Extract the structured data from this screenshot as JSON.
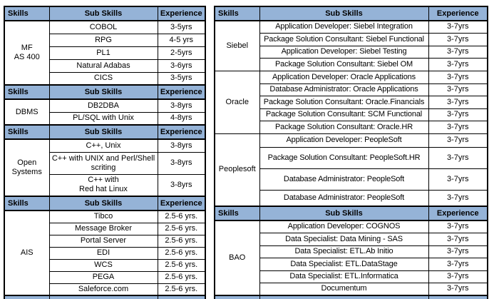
{
  "colors": {
    "header_bg": "#95B3D7",
    "border": "#000000",
    "background": "#FFFFFF"
  },
  "tables": [
    {
      "id": "left",
      "blocks": [
        {
          "type": "header",
          "skills": "Skills",
          "sub_skills": "Sub Skills",
          "experience": "Experience"
        },
        {
          "type": "section",
          "skill": "MF\nAS 400",
          "rows": [
            {
              "sub": "COBOL",
              "exp": "3-5yrs"
            },
            {
              "sub": "RPG",
              "exp": "4-5 yrs"
            },
            {
              "sub": "PL1",
              "exp": "2-5yrs"
            },
            {
              "sub": "Natural Adabas",
              "exp": "3-6yrs"
            },
            {
              "sub": "CICS",
              "exp": "3-5yrs"
            }
          ]
        },
        {
          "type": "header",
          "skills": "Skills",
          "sub_skills": "Sub Skills",
          "experience": "Experience"
        },
        {
          "type": "section",
          "skill": "DBMS",
          "rows": [
            {
              "sub": "DB2DBA",
              "exp": "3-8yrs"
            },
            {
              "sub": "PL/SQL with Unix",
              "exp": "4-8yrs"
            }
          ]
        },
        {
          "type": "header",
          "skills": "Skills",
          "sub_skills": "Sub Skills",
          "experience": "Experience"
        },
        {
          "type": "section",
          "skill": "Open\nSystems",
          "rows": [
            {
              "sub": "C++, Unix",
              "exp": "3-8yrs"
            },
            {
              "sub": "C++ with UNIX and Perl/Shell scriting",
              "exp": "3-8yrs"
            },
            {
              "sub": "C++ with\nRed hat Linux",
              "exp": "3-8yrs"
            }
          ]
        },
        {
          "type": "header",
          "skills": "Skills",
          "sub_skills": "Sub Skills",
          "experience": "Experience"
        },
        {
          "type": "section",
          "skill": "AIS",
          "rows": [
            {
              "sub": "Tibco",
              "exp": "2.5-6 yrs."
            },
            {
              "sub": "Message Broker",
              "exp": "2.5-6 yrs."
            },
            {
              "sub": "Portal Server",
              "exp": "2.5-6 yrs."
            },
            {
              "sub": "EDI",
              "exp": "2.5-6 yrs."
            },
            {
              "sub": "WCS",
              "exp": "2.5-6 yrs."
            },
            {
              "sub": "PEGA",
              "exp": "2.5-6 yrs."
            },
            {
              "sub": "Saleforce.com",
              "exp": "2.5-6 yrs."
            }
          ]
        },
        {
          "type": "partial-header"
        }
      ]
    },
    {
      "id": "right",
      "blocks": [
        {
          "type": "header",
          "skills": "Skills",
          "sub_skills": "Sub Skills",
          "experience": "Experience"
        },
        {
          "type": "section",
          "skill": "Siebel",
          "rows": [
            {
              "sub": "Application Developer: Siebel Integration",
              "exp": "3-7yrs"
            },
            {
              "sub": "Package Solution Consultant: Siebel Functional",
              "exp": "3-7yrs"
            },
            {
              "sub": "Application Developer: Siebel Testing",
              "exp": "3-7yrs"
            },
            {
              "sub": "Package Solution Consultant: Siebel OM",
              "exp": "3-7yrs"
            }
          ]
        },
        {
          "type": "section",
          "skill": "Oracle",
          "rows": [
            {
              "sub": "Application Developer: Oracle Applications",
              "exp": "3-7yrs"
            },
            {
              "sub": "Database Administrator: Oracle Applications",
              "exp": "3-7yrs"
            },
            {
              "sub": "Package Solution Consultant: Oracle.Financials",
              "exp": "3-7yrs"
            },
            {
              "sub": "Package Solution Consultant: SCM Functional",
              "exp": "3-7yrs"
            },
            {
              "sub": "Package Solution Consultant: Oracle.HR",
              "exp": "3-7yrs"
            }
          ]
        },
        {
          "type": "section",
          "skill": "Peoplesoft",
          "rows": [
            {
              "sub": "Application Developer: PeopleSoft",
              "exp": "3-7yrs"
            },
            {
              "sub": "Package Solution Consultant: PeopleSoft.HR",
              "exp": "3-7yrs"
            },
            {
              "sub": "Database Administrator: PeopleSoft",
              "exp": "3-7yrs"
            },
            {
              "sub": "Database Administrator: PeopleSoft",
              "exp": "3-7yrs"
            }
          ]
        },
        {
          "type": "header",
          "skills": "Skills",
          "sub_skills": "Sub Skills",
          "experience": "Experience"
        },
        {
          "type": "section",
          "skill": "BAO",
          "rows": [
            {
              "sub": "Application Developer: COGNOS",
              "exp": "3-7yrs"
            },
            {
              "sub": "Data Specialist: Data Mining - SAS",
              "exp": "3-7yrs"
            },
            {
              "sub": "Data Specialist: ETL.Ab Initio",
              "exp": "3-7yrs"
            },
            {
              "sub": "Data Specialist: ETL.DataStage",
              "exp": "3-7yrs"
            },
            {
              "sub": "Data Specialist: ETL.Informatica",
              "exp": "3-7yrs"
            },
            {
              "sub": "Documentum",
              "exp": "3-7yrs"
            }
          ]
        },
        {
          "type": "partial-header"
        }
      ]
    }
  ]
}
